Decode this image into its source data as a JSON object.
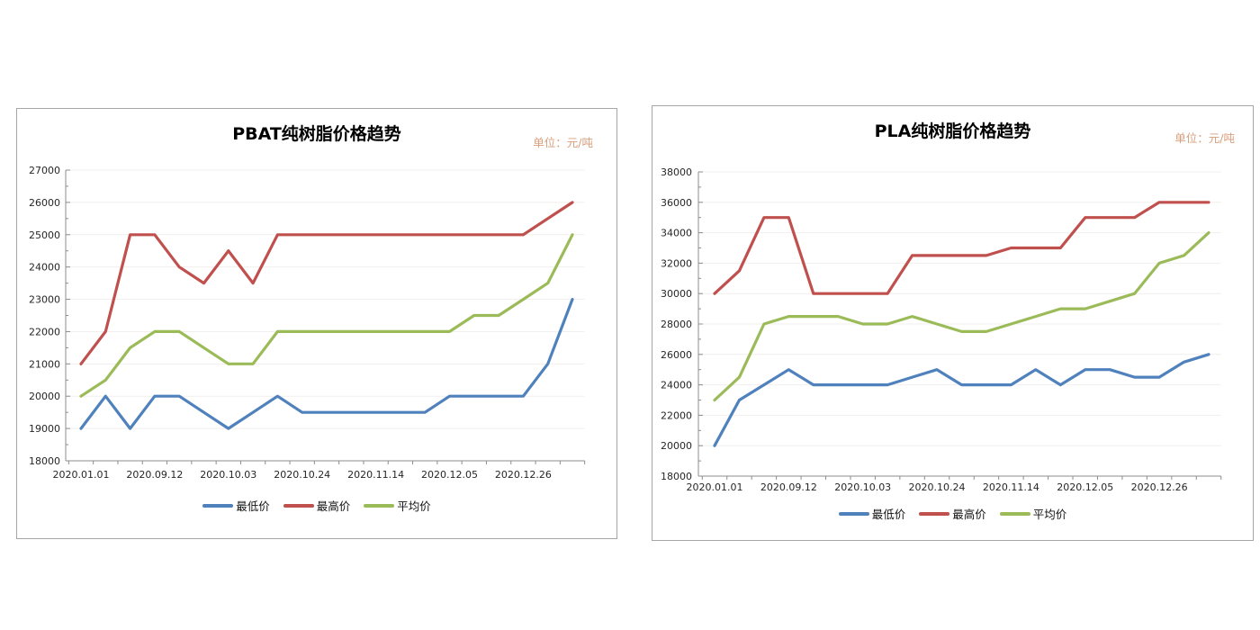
{
  "colors": {
    "background": "#FFFFFF",
    "card_border": "#A6A6A6",
    "axis": "#8C8C8C",
    "grid": "#F2EFEE",
    "tick_label": "#262626",
    "title": "#000000",
    "unit_label": "#D79E7C",
    "series_min": "#4F81BD",
    "series_max": "#C0504D",
    "series_avg": "#9BBB59"
  },
  "chart_data": [
    {
      "type": "line",
      "title": "PBAT纯树脂价格趋势",
      "unit_label": "单位：元/吨",
      "x_labels": [
        "2020.01.01",
        "2020.09.12",
        "2020.10.03",
        "2020.10.24",
        "2020.11.14",
        "2020.12.05",
        "2020.12.26"
      ],
      "x_label_interval": 3,
      "ylim": [
        18000,
        27000
      ],
      "y_major": 1000,
      "y_minor": 500,
      "grid": true,
      "legend_position": "bottom",
      "series": [
        {
          "name": "最低价",
          "color": "#4F81BD",
          "values": [
            19000,
            20000,
            19000,
            20000,
            20000,
            19500,
            19000,
            19500,
            20000,
            19500,
            19500,
            19500,
            19500,
            19500,
            19500,
            20000,
            20000,
            20000,
            20000,
            21000,
            23000
          ]
        },
        {
          "name": "最高价",
          "color": "#C0504D",
          "values": [
            21000,
            22000,
            25000,
            25000,
            24000,
            23500,
            24500,
            23500,
            25000,
            25000,
            25000,
            25000,
            25000,
            25000,
            25000,
            25000,
            25000,
            25000,
            25000,
            25500,
            26000
          ]
        },
        {
          "name": "平均价",
          "color": "#9BBB59",
          "values": [
            20000,
            20500,
            21500,
            22000,
            22000,
            21500,
            21000,
            21000,
            22000,
            22000,
            22000,
            22000,
            22000,
            22000,
            22000,
            22000,
            22500,
            22500,
            23000,
            23500,
            25000
          ]
        }
      ]
    },
    {
      "type": "line",
      "title": "PLA纯树脂价格趋势",
      "unit_label": "单位：元/吨",
      "x_labels": [
        "2020.01.01",
        "2020.09.12",
        "2020.10.03",
        "2020.10.24",
        "2020.11.14",
        "2020.12.05",
        "2020.12.26"
      ],
      "x_label_interval": 3,
      "ylim": [
        18000,
        38000
      ],
      "y_major": 2000,
      "y_minor": 1000,
      "grid": true,
      "legend_position": "bottom",
      "series": [
        {
          "name": "最低价",
          "color": "#4F81BD",
          "values": [
            20000,
            23000,
            24000,
            25000,
            24000,
            24000,
            24000,
            24000,
            24500,
            25000,
            24000,
            24000,
            24000,
            25000,
            24000,
            25000,
            25000,
            24500,
            24500,
            25500,
            26000
          ]
        },
        {
          "name": "最高价",
          "color": "#C0504D",
          "values": [
            30000,
            31500,
            35000,
            35000,
            30000,
            30000,
            30000,
            30000,
            32500,
            32500,
            32500,
            32500,
            33000,
            33000,
            33000,
            35000,
            35000,
            35000,
            36000,
            36000,
            36000
          ]
        },
        {
          "name": "平均价",
          "color": "#9BBB59",
          "values": [
            23000,
            24500,
            28000,
            28500,
            28500,
            28500,
            28000,
            28000,
            28500,
            28000,
            27500,
            27500,
            28000,
            28500,
            29000,
            29000,
            29500,
            30000,
            32000,
            32500,
            34000
          ]
        }
      ]
    }
  ]
}
